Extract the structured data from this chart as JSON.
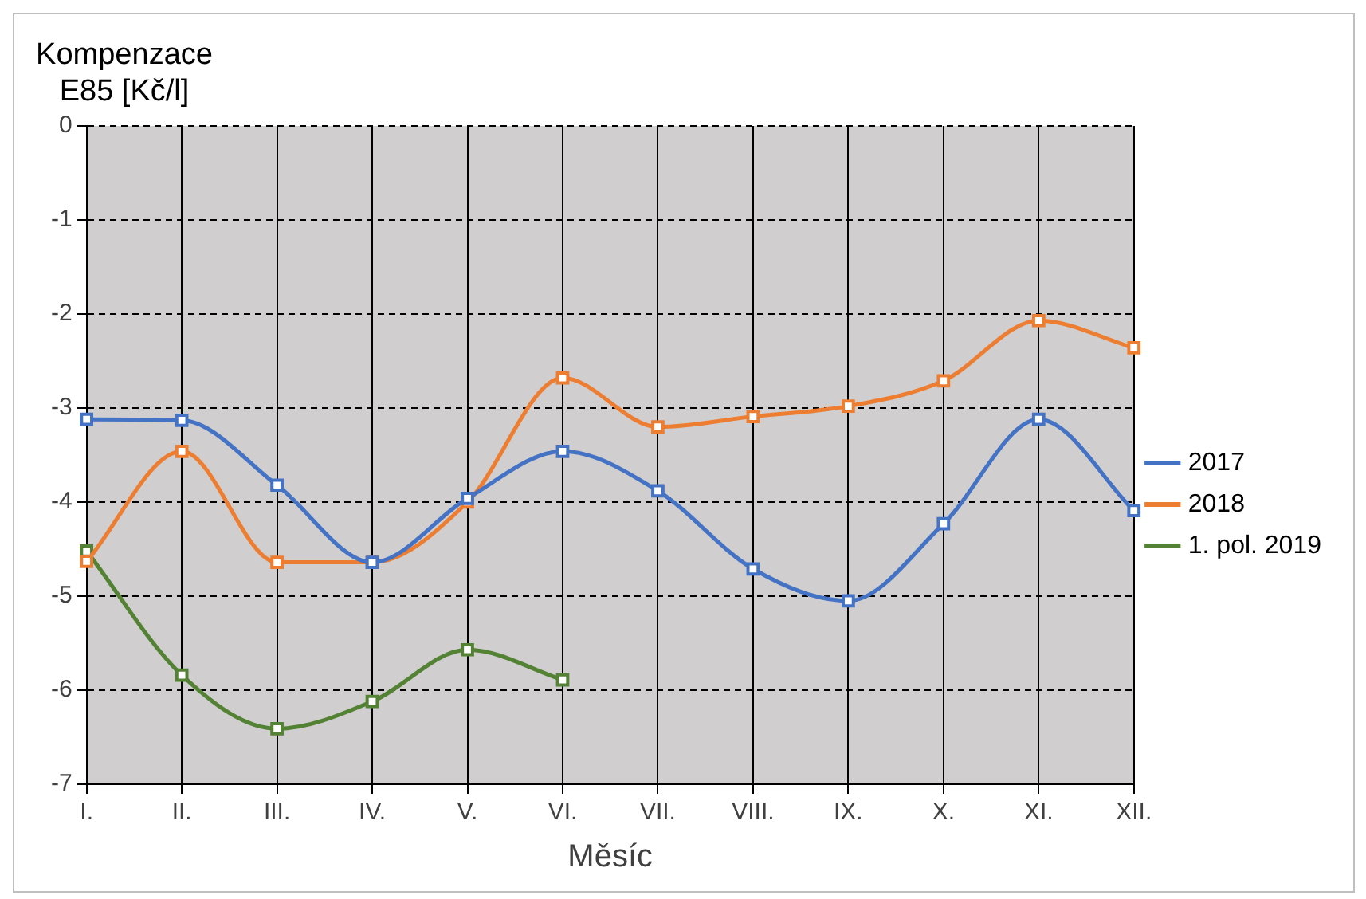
{
  "chart_data": {
    "type": "line",
    "ylabel": "Kompenzace E85 [Kč/l]",
    "xlabel": "Měsíc",
    "categories": [
      "I.",
      "II.",
      "III.",
      "IV.",
      "V.",
      "VI.",
      "VII.",
      "VIII.",
      "IX.",
      "X.",
      "XI.",
      "XII."
    ],
    "series": [
      {
        "name": "2017",
        "color": "#4472c4",
        "values": [
          -3.12,
          -3.13,
          -3.82,
          -4.64,
          -3.96,
          -3.46,
          -3.88,
          -4.71,
          -5.05,
          -4.23,
          -3.12,
          -4.09
        ]
      },
      {
        "name": "2018",
        "color": "#ed7d31",
        "values": [
          -4.63,
          -3.46,
          -4.64,
          -4.64,
          -4.0,
          -2.68,
          -3.2,
          -3.09,
          -2.98,
          -2.71,
          -2.07,
          -2.36
        ]
      },
      {
        "name": "1. pol. 2019",
        "color": "#548235",
        "values": [
          -4.52,
          -5.84,
          -6.41,
          -6.12,
          -5.57,
          -5.89,
          null,
          null,
          null,
          null,
          null,
          null
        ]
      }
    ],
    "ylim": [
      -7,
      0
    ],
    "yticks": [
      -7,
      -6,
      -5,
      -4,
      -3,
      -2,
      -1,
      0
    ],
    "grid": true,
    "legend": "right",
    "marker": "square",
    "line_style": "solid"
  }
}
